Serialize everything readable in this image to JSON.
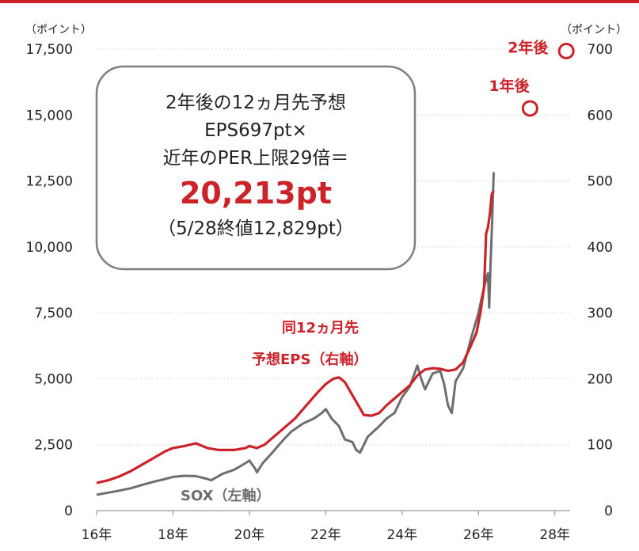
{
  "chart_data": {
    "type": "line",
    "left_axis": {
      "unit_label": "（ポイント）",
      "ylim": [
        0,
        17500
      ],
      "ticks": [
        0,
        2500,
        5000,
        7500,
        10000,
        12500,
        15000,
        17500
      ],
      "tick_labels": [
        "0",
        "2,500",
        "5,000",
        "7,500",
        "10,000",
        "12,500",
        "15,000",
        "17,500"
      ]
    },
    "right_axis": {
      "unit_label": "（ポイント）",
      "ylim": [
        0,
        700
      ],
      "ticks": [
        0,
        100,
        200,
        300,
        400,
        500,
        600,
        700
      ],
      "tick_labels": [
        "0",
        "100",
        "200",
        "300",
        "400",
        "500",
        "600",
        "700"
      ]
    },
    "x_axis": {
      "xlim": [
        2016,
        2028.4
      ],
      "ticks": [
        2016,
        2018,
        2020,
        2022,
        2024,
        2026,
        2028
      ],
      "tick_labels": [
        "16年",
        "18年",
        "20年",
        "22年",
        "24年",
        "26年",
        "28年"
      ]
    },
    "grid": true,
    "series": [
      {
        "name": "SOX（左軸）",
        "axis": "left",
        "color": "#6e6e6e",
        "points": [
          [
            2016.0,
            600
          ],
          [
            2016.3,
            680
          ],
          [
            2016.6,
            760
          ],
          [
            2016.9,
            850
          ],
          [
            2017.2,
            980
          ],
          [
            2017.5,
            1100
          ],
          [
            2017.8,
            1200
          ],
          [
            2018.0,
            1280
          ],
          [
            2018.3,
            1320
          ],
          [
            2018.6,
            1310
          ],
          [
            2018.9,
            1200
          ],
          [
            2019.0,
            1150
          ],
          [
            2019.3,
            1400
          ],
          [
            2019.6,
            1550
          ],
          [
            2019.9,
            1800
          ],
          [
            2020.0,
            1900
          ],
          [
            2020.15,
            1600
          ],
          [
            2020.2,
            1450
          ],
          [
            2020.35,
            1800
          ],
          [
            2020.6,
            2200
          ],
          [
            2020.9,
            2700
          ],
          [
            2021.1,
            3000
          ],
          [
            2021.4,
            3300
          ],
          [
            2021.7,
            3500
          ],
          [
            2021.9,
            3700
          ],
          [
            2022.0,
            3850
          ],
          [
            2022.15,
            3500
          ],
          [
            2022.35,
            3200
          ],
          [
            2022.5,
            2700
          ],
          [
            2022.7,
            2600
          ],
          [
            2022.8,
            2300
          ],
          [
            2022.9,
            2200
          ],
          [
            2023.1,
            2800
          ],
          [
            2023.4,
            3200
          ],
          [
            2023.6,
            3500
          ],
          [
            2023.8,
            3700
          ],
          [
            2024.0,
            4300
          ],
          [
            2024.2,
            4700
          ],
          [
            2024.4,
            5500
          ],
          [
            2024.5,
            5000
          ],
          [
            2024.6,
            4600
          ],
          [
            2024.8,
            5200
          ],
          [
            2025.0,
            5300
          ],
          [
            2025.1,
            4800
          ],
          [
            2025.2,
            4000
          ],
          [
            2025.3,
            3700
          ],
          [
            2025.4,
            4900
          ],
          [
            2025.6,
            5400
          ],
          [
            2025.8,
            6500
          ],
          [
            2026.0,
            7500
          ],
          [
            2026.15,
            8500
          ],
          [
            2026.25,
            9000
          ],
          [
            2026.28,
            7700
          ],
          [
            2026.32,
            9500
          ],
          [
            2026.36,
            11000
          ],
          [
            2026.4,
            12829
          ]
        ]
      },
      {
        "name": "同12ヵ月先予想EPS（右軸）",
        "axis": "right",
        "color": "#cc2229",
        "points": [
          [
            2016.0,
            42
          ],
          [
            2016.3,
            46
          ],
          [
            2016.6,
            52
          ],
          [
            2016.9,
            60
          ],
          [
            2017.2,
            70
          ],
          [
            2017.5,
            80
          ],
          [
            2017.8,
            90
          ],
          [
            2018.0,
            95
          ],
          [
            2018.3,
            98
          ],
          [
            2018.6,
            102
          ],
          [
            2018.9,
            95
          ],
          [
            2019.2,
            92
          ],
          [
            2019.6,
            92
          ],
          [
            2019.9,
            95
          ],
          [
            2020.0,
            98
          ],
          [
            2020.2,
            95
          ],
          [
            2020.4,
            100
          ],
          [
            2020.6,
            110
          ],
          [
            2020.9,
            125
          ],
          [
            2021.2,
            140
          ],
          [
            2021.5,
            160
          ],
          [
            2021.8,
            180
          ],
          [
            2022.0,
            192
          ],
          [
            2022.2,
            200
          ],
          [
            2022.35,
            202
          ],
          [
            2022.5,
            195
          ],
          [
            2022.7,
            175
          ],
          [
            2022.9,
            155
          ],
          [
            2023.0,
            145
          ],
          [
            2023.2,
            144
          ],
          [
            2023.4,
            148
          ],
          [
            2023.6,
            160
          ],
          [
            2023.8,
            170
          ],
          [
            2024.0,
            180
          ],
          [
            2024.2,
            190
          ],
          [
            2024.4,
            205
          ],
          [
            2024.6,
            214
          ],
          [
            2024.8,
            216
          ],
          [
            2025.0,
            215
          ],
          [
            2025.2,
            212
          ],
          [
            2025.4,
            214
          ],
          [
            2025.6,
            225
          ],
          [
            2025.8,
            250
          ],
          [
            2025.95,
            270
          ],
          [
            2026.05,
            300
          ],
          [
            2026.15,
            340
          ],
          [
            2026.2,
            420
          ],
          [
            2026.25,
            430
          ],
          [
            2026.3,
            450
          ],
          [
            2026.35,
            480
          ],
          [
            2026.4,
            485
          ]
        ]
      }
    ],
    "series_labels": {
      "eps_line1": "同12ヵ月先",
      "eps_line2": "予想EPS（右軸）",
      "sox": "SOX（左軸）"
    },
    "forecast_points": [
      {
        "label": "1年後",
        "x": 2027.35,
        "y_right": 610,
        "color": "#cc2229"
      },
      {
        "label": "2年後",
        "x": 2028.3,
        "y_right": 697,
        "color": "#cc2229"
      }
    ],
    "callout": {
      "line1": "2年後の12ヵ月先予想",
      "line2": "EPS697pt×",
      "line3": "近年のPER上限29倍＝",
      "value": "20,213pt",
      "note": "（5/28終値12,829pt）"
    }
  }
}
